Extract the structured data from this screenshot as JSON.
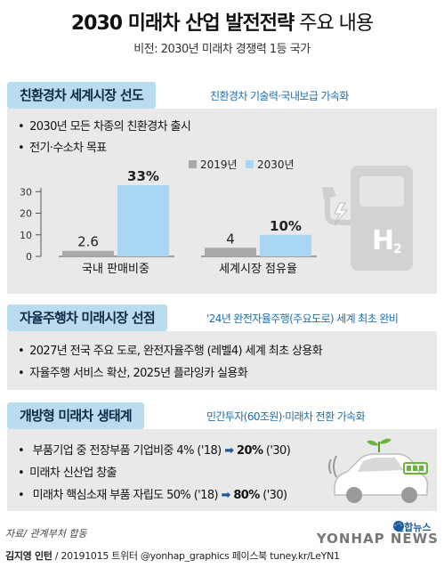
{
  "header": {
    "title_bold": "2030 미래차 산업 발전전략",
    "title_normal": "주요 내용",
    "subtitle": "비전: 2030년 미래차 경쟁력 1등 국가"
  },
  "section1": {
    "heading": "친환경차 세계시장 선도",
    "note": "친환경차 기술력·국내보급 가속화",
    "bullets": [
      "2030년 모든 차종의 친환경차 출시",
      "전기·수소차 목표"
    ]
  },
  "section2": {
    "heading": "자율주행차 미래시장 선점",
    "note": "'24년 완전자율주행(주요도로) 세계 최초 완비",
    "bullets": [
      "2027년 전국 주요 도로, 완전자율주행 (레벨4) 세계 최초 상용화",
      "자율주행 서비스 확산, 2025년 플라잉카 실용화"
    ]
  },
  "section3": {
    "heading": "개방형 미래차 생태계",
    "note": "민간투자(60조원)·미래차 전환 가속화",
    "bullet1": {
      "pre": "부품기업 중 전장부품 기업비중 4% ('18)",
      "arrow": "➡",
      "val": "20%",
      "post": " ('30)"
    },
    "bullet2": "미래차 신산업 창출",
    "bullet3": {
      "pre": "미래차 핵심소재 부품 자립도 50% ('18)",
      "arrow": "➡",
      "val": "80%",
      "post": " ('30)"
    }
  },
  "footer": {
    "source": "자료/ 관계부처 합동",
    "credit_author": "김지영 인턴",
    "credit_rest": " / 20191015 트위터 @yonhap_graphics  페이스북 tuney.kr/LeYN1",
    "agency_ko": "연합뉴스",
    "agency_en": "YONHAP NEWS"
  },
  "colors": {
    "bar_2019": "#aaaaaa",
    "bar_2030": "#a9d6f2",
    "accent": "#1a6fb0",
    "panel": "#e9e9e9"
  },
  "chart_data": {
    "type": "bar",
    "categories": [
      "국내 판매비중",
      "세계시장 점유율"
    ],
    "series": [
      {
        "name": "2019년",
        "values": [
          2.6,
          4
        ]
      },
      {
        "name": "2030년",
        "values": [
          33,
          10
        ]
      }
    ],
    "data_labels": [
      [
        "2.6",
        "33%"
      ],
      [
        "4",
        "10%"
      ]
    ],
    "yticks": [
      0,
      10,
      20,
      30
    ],
    "ylim": [
      0,
      33
    ],
    "title": "",
    "xlabel": "",
    "ylabel": "",
    "legend": "top-center",
    "grid": false
  }
}
